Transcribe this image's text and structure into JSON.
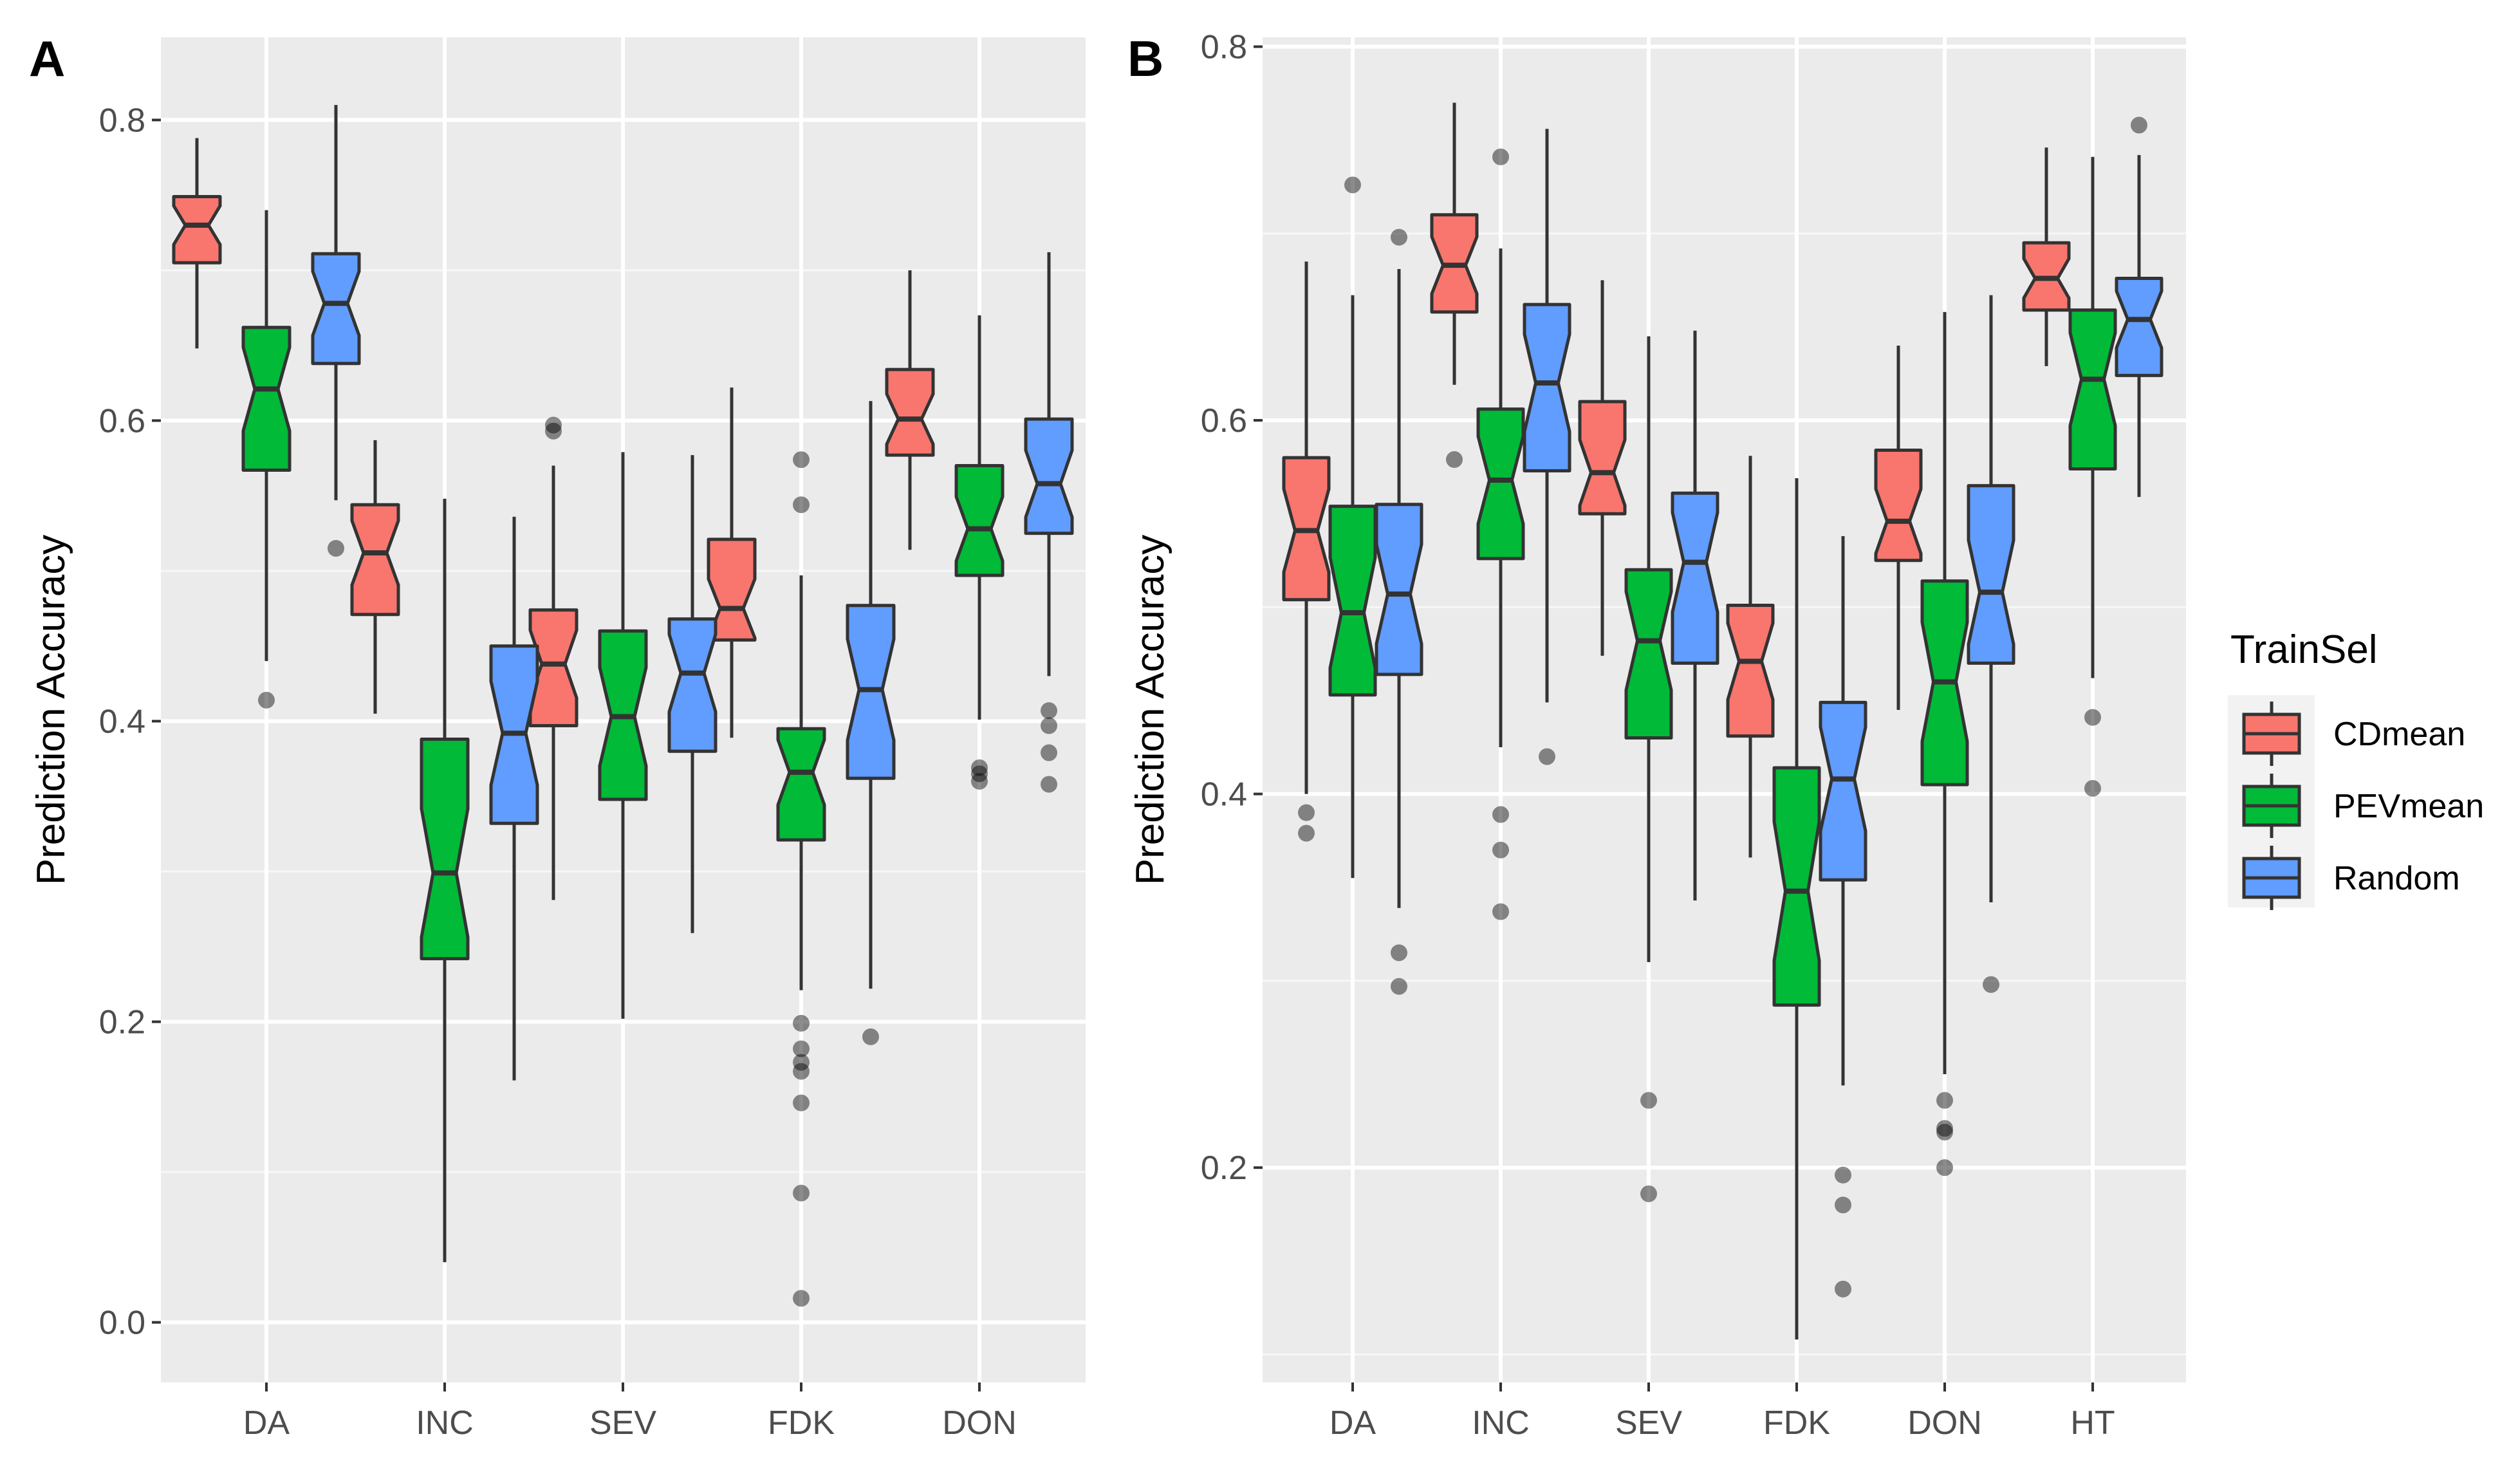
{
  "chart_data": [
    {
      "type": "boxplot",
      "panel": "A",
      "ylabel": "Prediction Accuracy",
      "xlabel": "",
      "ylim": [
        -0.04,
        0.855
      ],
      "yticks": [
        0.0,
        0.2,
        0.4,
        0.6,
        0.8
      ],
      "ytick_labels": [
        "0.0",
        "0.2",
        "0.4",
        "0.6",
        "0.8"
      ],
      "grid": true,
      "categories": [
        "DA",
        "INC",
        "SEV",
        "FDK",
        "DON"
      ],
      "series": [
        {
          "name": "CDmean",
          "color": "#F8766D",
          "boxes": [
            {
              "cat": "DA",
              "whislo": 0.648,
              "q1": 0.705,
              "med": 0.73,
              "q3": 0.749,
              "whishi": 0.788,
              "fliers": []
            },
            {
              "cat": "INC",
              "whislo": 0.405,
              "q1": 0.471,
              "med": 0.512,
              "q3": 0.544,
              "whishi": 0.587,
              "fliers": []
            },
            {
              "cat": "SEV",
              "whislo": 0.281,
              "q1": 0.397,
              "med": 0.438,
              "q3": 0.474,
              "whishi": 0.57,
              "fliers": [
                0.593,
                0.597
              ]
            },
            {
              "cat": "FDK",
              "whislo": 0.389,
              "q1": 0.454,
              "med": 0.475,
              "q3": 0.521,
              "whishi": 0.622,
              "fliers": []
            },
            {
              "cat": "DON",
              "whislo": 0.514,
              "q1": 0.577,
              "med": 0.601,
              "q3": 0.634,
              "whishi": 0.7,
              "fliers": []
            }
          ]
        },
        {
          "name": "PEVmean",
          "color": "#00BA38",
          "boxes": [
            {
              "cat": "DA",
              "whislo": 0.44,
              "q1": 0.567,
              "med": 0.621,
              "q3": 0.662,
              "whishi": 0.74,
              "fliers": [
                0.414
              ]
            },
            {
              "cat": "INC",
              "whislo": 0.04,
              "q1": 0.242,
              "med": 0.299,
              "q3": 0.388,
              "whishi": 0.548,
              "fliers": []
            },
            {
              "cat": "SEV",
              "whislo": 0.202,
              "q1": 0.348,
              "med": 0.403,
              "q3": 0.46,
              "whishi": 0.579,
              "fliers": []
            },
            {
              "cat": "FDK",
              "whislo": 0.221,
              "q1": 0.321,
              "med": 0.366,
              "q3": 0.395,
              "whishi": 0.497,
              "fliers": [
                0.574,
                0.544,
                0.199,
                0.182,
                0.173,
                0.167,
                0.146,
                0.086,
                0.016
              ]
            },
            {
              "cat": "DON",
              "whislo": 0.401,
              "q1": 0.497,
              "med": 0.528,
              "q3": 0.57,
              "whishi": 0.67,
              "fliers": [
                0.369,
                0.365,
                0.36
              ]
            }
          ]
        },
        {
          "name": "Random",
          "color": "#619CFF",
          "boxes": [
            {
              "cat": "DA",
              "whislo": 0.547,
              "q1": 0.638,
              "med": 0.678,
              "q3": 0.711,
              "whishi": 0.81,
              "fliers": [
                0.515
              ]
            },
            {
              "cat": "INC",
              "whislo": 0.161,
              "q1": 0.332,
              "med": 0.392,
              "q3": 0.45,
              "whishi": 0.536,
              "fliers": []
            },
            {
              "cat": "SEV",
              "whislo": 0.259,
              "q1": 0.38,
              "med": 0.432,
              "q3": 0.468,
              "whishi": 0.577,
              "fliers": []
            },
            {
              "cat": "FDK",
              "whislo": 0.222,
              "q1": 0.362,
              "med": 0.421,
              "q3": 0.477,
              "whishi": 0.613,
              "fliers": [
                0.19
              ]
            },
            {
              "cat": "DON",
              "whislo": 0.43,
              "q1": 0.525,
              "med": 0.558,
              "q3": 0.601,
              "whishi": 0.712,
              "fliers": [
                0.407,
                0.397,
                0.379,
                0.358
              ]
            }
          ]
        }
      ]
    },
    {
      "type": "boxplot",
      "panel": "B",
      "ylabel": "Prediction Accuracy",
      "xlabel": "",
      "ylim": [
        0.085,
        0.805
      ],
      "yticks": [
        0.2,
        0.4,
        0.6,
        0.8
      ],
      "ytick_labels": [
        "0.2",
        "0.4",
        "0.6",
        "0.8"
      ],
      "grid": true,
      "categories": [
        "DA",
        "INC",
        "SEV",
        "FDK",
        "DON",
        "HT"
      ],
      "series": [
        {
          "name": "CDmean",
          "color": "#F8766D",
          "boxes": [
            {
              "cat": "DA",
              "whislo": 0.4,
              "q1": 0.504,
              "med": 0.541,
              "q3": 0.58,
              "whishi": 0.685,
              "fliers": [
                0.39,
                0.379
              ]
            },
            {
              "cat": "INC",
              "whislo": 0.619,
              "q1": 0.658,
              "med": 0.683,
              "q3": 0.71,
              "whishi": 0.77,
              "fliers": [
                0.579
              ]
            },
            {
              "cat": "SEV",
              "whislo": 0.474,
              "q1": 0.55,
              "med": 0.572,
              "q3": 0.61,
              "whishi": 0.675,
              "fliers": []
            },
            {
              "cat": "FDK",
              "whislo": 0.366,
              "q1": 0.431,
              "med": 0.471,
              "q3": 0.501,
              "whishi": 0.581,
              "fliers": []
            },
            {
              "cat": "DON",
              "whislo": 0.445,
              "q1": 0.525,
              "med": 0.546,
              "q3": 0.584,
              "whishi": 0.64,
              "fliers": []
            },
            {
              "cat": "HT",
              "whislo": 0.629,
              "q1": 0.659,
              "med": 0.676,
              "q3": 0.695,
              "whishi": 0.746,
              "fliers": []
            }
          ]
        },
        {
          "name": "PEVmean",
          "color": "#00BA38",
          "boxes": [
            {
              "cat": "DA",
              "whislo": 0.355,
              "q1": 0.453,
              "med": 0.497,
              "q3": 0.554,
              "whishi": 0.667,
              "fliers": [
                0.726
              ]
            },
            {
              "cat": "INC",
              "whislo": 0.425,
              "q1": 0.526,
              "med": 0.568,
              "q3": 0.606,
              "whishi": 0.692,
              "fliers": [
                0.741,
                0.389,
                0.37,
                0.337
              ]
            },
            {
              "cat": "SEV",
              "whislo": 0.31,
              "q1": 0.43,
              "med": 0.482,
              "q3": 0.52,
              "whishi": 0.645,
              "fliers": [
                0.236,
                0.186
              ]
            },
            {
              "cat": "FDK",
              "whislo": 0.108,
              "q1": 0.287,
              "med": 0.348,
              "q3": 0.414,
              "whishi": 0.569,
              "fliers": []
            },
            {
              "cat": "DON",
              "whislo": 0.25,
              "q1": 0.405,
              "med": 0.46,
              "q3": 0.514,
              "whishi": 0.658,
              "fliers": [
                0.236,
                0.221,
                0.219,
                0.2
              ]
            },
            {
              "cat": "HT",
              "whislo": 0.462,
              "q1": 0.574,
              "med": 0.622,
              "q3": 0.659,
              "whishi": 0.741,
              "fliers": [
                0.441,
                0.403
              ]
            }
          ]
        },
        {
          "name": "Random",
          "color": "#619CFF",
          "boxes": [
            {
              "cat": "DA",
              "whislo": 0.339,
              "q1": 0.464,
              "med": 0.507,
              "q3": 0.555,
              "whishi": 0.681,
              "fliers": [
                0.698,
                0.315,
                0.297
              ]
            },
            {
              "cat": "INC",
              "whislo": 0.449,
              "q1": 0.573,
              "med": 0.62,
              "q3": 0.662,
              "whishi": 0.756,
              "fliers": [
                0.42
              ]
            },
            {
              "cat": "SEV",
              "whislo": 0.343,
              "q1": 0.47,
              "med": 0.524,
              "q3": 0.561,
              "whishi": 0.648,
              "fliers": []
            },
            {
              "cat": "FDK",
              "whislo": 0.244,
              "q1": 0.354,
              "med": 0.408,
              "q3": 0.449,
              "whishi": 0.538,
              "fliers": [
                0.196,
                0.18,
                0.135
              ]
            },
            {
              "cat": "DON",
              "whislo": 0.342,
              "q1": 0.47,
              "med": 0.508,
              "q3": 0.565,
              "whishi": 0.667,
              "fliers": [
                0.298
              ]
            },
            {
              "cat": "HT",
              "whislo": 0.559,
              "q1": 0.624,
              "med": 0.654,
              "q3": 0.676,
              "whishi": 0.742,
              "fliers": [
                0.758
              ]
            }
          ]
        }
      ]
    }
  ],
  "legend": {
    "title": "TrainSel",
    "items": [
      {
        "label": "CDmean",
        "color": "#F8766D"
      },
      {
        "label": "PEVmean",
        "color": "#00BA38"
      },
      {
        "label": "Random",
        "color": "#619CFF"
      }
    ]
  }
}
